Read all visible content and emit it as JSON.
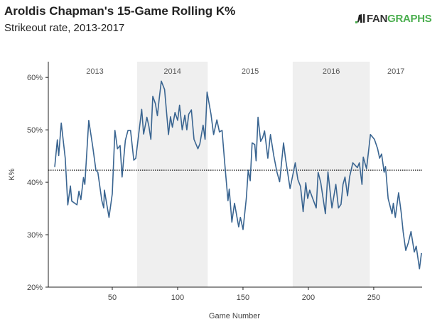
{
  "header": {
    "title": "Aroldis Chapman's 15-Game Rolling K%",
    "subtitle": "Strikeout rate, 2013-2017"
  },
  "logo": {
    "text_dark": "FAN",
    "text_green": "GRAPHS",
    "color": "#4caf50"
  },
  "chart_data": {
    "type": "line",
    "title": "Aroldis Chapman's 15-Game Rolling K%",
    "subtitle": "Strikeout rate, 2013-2017",
    "xlabel": "Game Number",
    "ylabel": "K%",
    "xlim": [
      0,
      287
    ],
    "ylim": [
      20,
      63
    ],
    "xticks": [
      50,
      100,
      150,
      200,
      250
    ],
    "yticks": [
      20,
      30,
      40,
      50,
      60
    ],
    "ytick_labels": [
      "20%",
      "30%",
      "40%",
      "50%",
      "60%"
    ],
    "grid": false,
    "line_color": "#3a6591",
    "reference_line": {
      "value": 42.3,
      "style": "dotted",
      "color": "#222222"
    },
    "seasons": [
      {
        "label": "2013",
        "start": 0,
        "end": 69,
        "shaded": false
      },
      {
        "label": "2014",
        "start": 69,
        "end": 123,
        "shaded": true
      },
      {
        "label": "2015",
        "start": 123,
        "end": 188,
        "shaded": false
      },
      {
        "label": "2016",
        "start": 188,
        "end": 247,
        "shaded": true
      },
      {
        "label": "2017",
        "start": 247,
        "end": 287,
        "shaded": false
      }
    ],
    "shade_color": "#efefef",
    "x": [
      6,
      8,
      9,
      11,
      14,
      16,
      18,
      19,
      23,
      24.5,
      26,
      28,
      29,
      32,
      35,
      37.5,
      39,
      42,
      43.5,
      44,
      47.5,
      50,
      52,
      54,
      56,
      57.5,
      60,
      62,
      64,
      66.5,
      68,
      72.5,
      74,
      76.5,
      78,
      79.5,
      81,
      83,
      84.5,
      86,
      87.5,
      90,
      93,
      94.5,
      96,
      98,
      100,
      101.5,
      103.5,
      105.5,
      107,
      108.5,
      110.5,
      112.5,
      115.5,
      117,
      119.5,
      121,
      122.5,
      125.5,
      127.5,
      130,
      132,
      134,
      136,
      138.5,
      139.5,
      141.5,
      143.5,
      146.7,
      148,
      150,
      152.5,
      154,
      155.5,
      157,
      159,
      160,
      161.5,
      163.5,
      165,
      166.5,
      169,
      171,
      173.5,
      176,
      178,
      181,
      182.5,
      186,
      190,
      192,
      194,
      196,
      198,
      199.5,
      201,
      203,
      206,
      207.5,
      209.5,
      213,
      215,
      218,
      221,
      223,
      225,
      226.5,
      228,
      230,
      231.5,
      234,
      237.5,
      239,
      241,
      242,
      244.5,
      247.5,
      250.5,
      253,
      254.5,
      256,
      258,
      259,
      261,
      264,
      265,
      266.5,
      269,
      271,
      272.5,
      274.5,
      276.5,
      278.5,
      281,
      282.5,
      285,
      286.5
    ],
    "y": [
      42.9,
      48.1,
      45.1,
      51.3,
      44.6,
      35.7,
      39.3,
      36.4,
      35.7,
      38.3,
      36.7,
      40.9,
      39.6,
      51.8,
      46.9,
      42.3,
      41.9,
      36.5,
      35.1,
      38.5,
      33.3,
      37.8,
      49.9,
      46.4,
      47,
      41,
      48,
      49.9,
      49.9,
      44.2,
      44.6,
      53.9,
      49.2,
      52.4,
      50.7,
      48.2,
      56.4,
      55,
      52.7,
      56.1,
      59.3,
      57.7,
      49.1,
      52.5,
      50.5,
      53.3,
      51.8,
      54.7,
      50,
      52.8,
      50,
      53,
      53.8,
      48.2,
      46.4,
      47.3,
      50.9,
      48.2,
      57.2,
      53,
      49.1,
      51.9,
      49.6,
      49.9,
      43.7,
      36.5,
      38.7,
      32.4,
      36,
      31.5,
      33.3,
      31,
      36.9,
      42.3,
      40.3,
      47.5,
      47.2,
      44.1,
      52.4,
      47.8,
      48.5,
      49.8,
      44.6,
      49.1,
      45.1,
      41.9,
      40.1,
      47.5,
      44.6,
      38.8,
      43.7,
      40.5,
      39.2,
      34.4,
      39.9,
      36.9,
      38.5,
      37.1,
      35.1,
      41.9,
      39.9,
      34,
      42,
      35.1,
      39.6,
      35.1,
      35.8,
      39.6,
      41,
      37.4,
      41,
      43.7,
      42.8,
      43.7,
      39.6,
      44.8,
      42.6,
      49.1,
      48.2,
      46.4,
      44.6,
      45.4,
      41.9,
      43,
      36.9,
      34,
      36,
      33.3,
      38,
      34.2,
      30.6,
      27,
      28.5,
      30.6,
      26.7,
      27.8,
      23.5,
      26.5
    ]
  }
}
